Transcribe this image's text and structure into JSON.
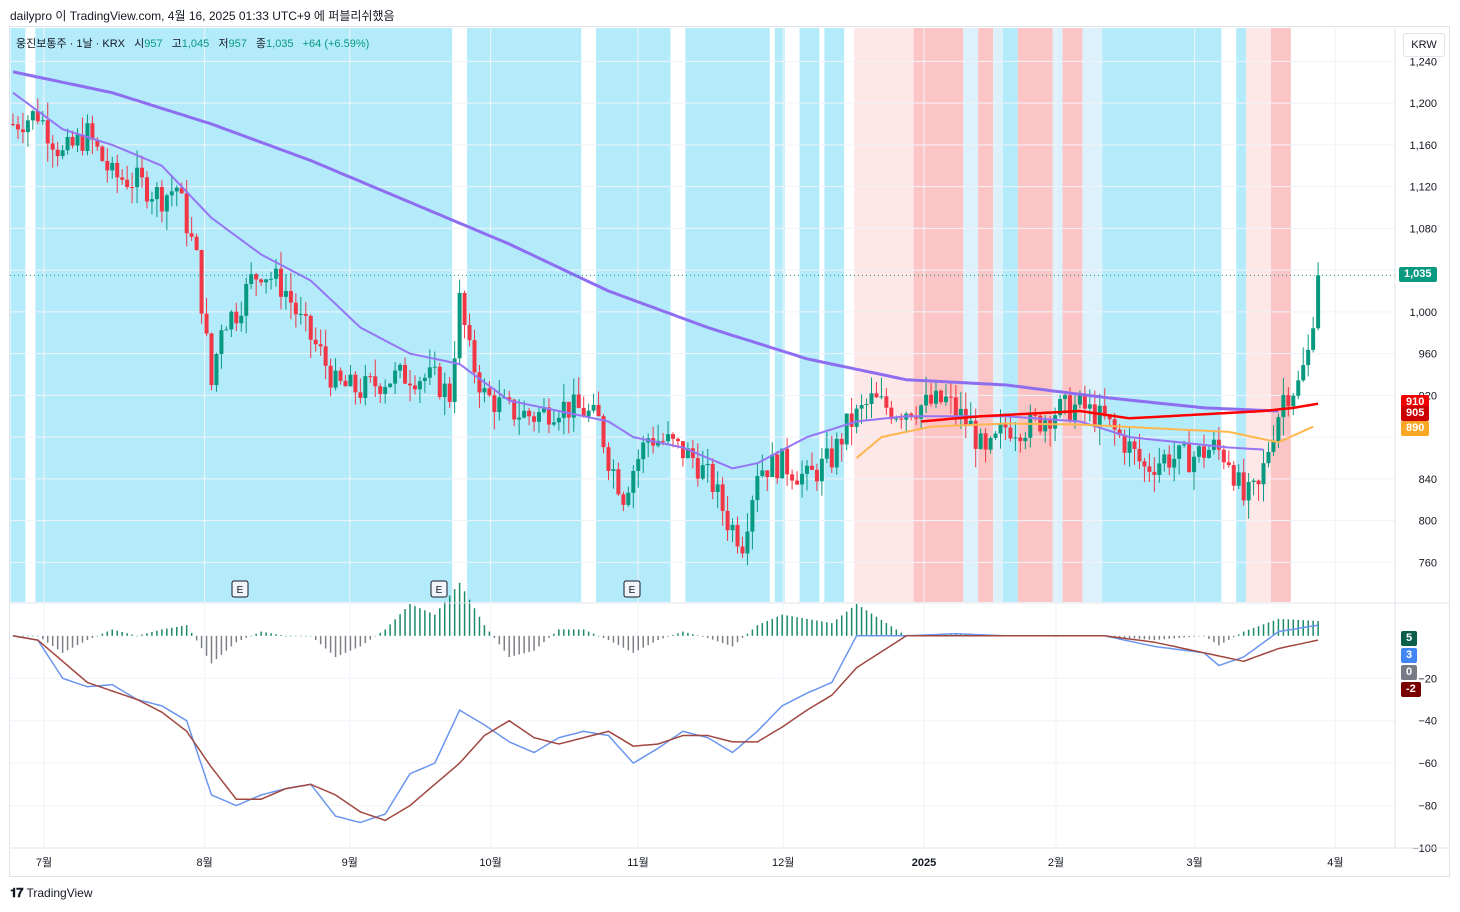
{
  "header": {
    "text": "dailypro 이 TradingView.com, 4월 16, 2025 01:33 UTC+9 에 퍼블리쉬했음"
  },
  "symbol": {
    "title": "웅진보통주 · 1날 · KRX",
    "open_label": "시",
    "open": "957",
    "high_label": "고",
    "high": "1,045",
    "low_label": "저",
    "low": "957",
    "close_label": "종",
    "close": "1,035",
    "change": "+64 (+6.59%)"
  },
  "currency": "KRW",
  "brand": "TradingView",
  "colors": {
    "up": "#089981",
    "down": "#f23645",
    "ma_long": "#8e6ef0",
    "ma_short": "#9575f5",
    "ma_orange": "#ffb74d",
    "ma_red": "#ff0000",
    "bg_blue": "#b3ebfb",
    "bg_blue_light": "#dcf1fb",
    "bg_red": "#fcc5c5",
    "bg_red_light": "#fde7e7",
    "macd_line": "#6b96ef",
    "signal_line": "#a0473f"
  },
  "price_tags": [
    {
      "label": "1,035",
      "value": 1035,
      "color": "#089981"
    },
    {
      "label": "910",
      "value": 910,
      "color": "#f20000"
    },
    {
      "label": "905",
      "value": 905,
      "color": "#cc0000"
    },
    {
      "label": "890",
      "value": 890,
      "color": "#f9a825"
    }
  ],
  "macd_tags": [
    {
      "label": "5",
      "value": 5,
      "color": "#0b5e4a"
    },
    {
      "label": "3",
      "value": 3,
      "color": "#4285f4"
    },
    {
      "label": "0",
      "value": 0,
      "color": "#787b86"
    },
    {
      "label": "-2",
      "value": -2,
      "color": "#7a0000"
    }
  ],
  "chart_data": [
    {
      "type": "candlestick",
      "title": "웅진보통주 · 1날 · KRX",
      "y_ticks": [
        760,
        800,
        840,
        880,
        920,
        960,
        1000,
        1040,
        1080,
        1120,
        1160,
        1200,
        1240
      ],
      "y_tick_labels": [
        "760",
        "800",
        "840",
        "",
        "920",
        "960",
        "1,000",
        "",
        "1,080",
        "1,120",
        "1,160",
        "1,200",
        "1,240"
      ],
      "ylim": [
        722,
        1272
      ],
      "x_ticks": [
        "7월",
        "8월",
        "9월",
        "10월",
        "11월",
        "12월",
        "2025",
        "2월",
        "3월",
        "4월"
      ],
      "last_price": 1035,
      "earnings_markers": [
        "E",
        "E",
        "E"
      ],
      "candle_keypoints": [
        [
          0,
          1180
        ],
        [
          5,
          1190
        ],
        [
          10,
          1150
        ],
        [
          15,
          1170
        ],
        [
          20,
          1130
        ],
        [
          25,
          1125
        ],
        [
          30,
          1110
        ],
        [
          33,
          1120
        ],
        [
          37,
          1050
        ],
        [
          40,
          930
        ],
        [
          42,
          990
        ],
        [
          45,
          1000
        ],
        [
          48,
          1030
        ],
        [
          50,
          1040
        ],
        [
          53,
          1030
        ],
        [
          55,
          1020
        ],
        [
          58,
          990
        ],
        [
          62,
          960
        ],
        [
          65,
          930
        ],
        [
          70,
          925
        ],
        [
          75,
          935
        ],
        [
          80,
          940
        ],
        [
          85,
          935
        ],
        [
          88,
          920
        ],
        [
          90,
          1010
        ],
        [
          92,
          960
        ],
        [
          95,
          920
        ],
        [
          100,
          905
        ],
        [
          105,
          900
        ],
        [
          110,
          910
        ],
        [
          115,
          905
        ],
        [
          118,
          895
        ],
        [
          120,
          860
        ],
        [
          123,
          825
        ],
        [
          125,
          850
        ],
        [
          128,
          880
        ],
        [
          132,
          875
        ],
        [
          137,
          860
        ],
        [
          141,
          835
        ],
        [
          144,
          800
        ],
        [
          147,
          780
        ],
        [
          150,
          850
        ],
        [
          155,
          855
        ],
        [
          160,
          840
        ],
        [
          165,
          860
        ],
        [
          168,
          890
        ],
        [
          173,
          915
        ],
        [
          178,
          905
        ],
        [
          183,
          910
        ],
        [
          188,
          915
        ],
        [
          193,
          890
        ],
        [
          196,
          860
        ],
        [
          200,
          890
        ],
        [
          205,
          890
        ],
        [
          210,
          905
        ],
        [
          215,
          910
        ],
        [
          220,
          895
        ],
        [
          225,
          870
        ],
        [
          228,
          850
        ],
        [
          232,
          860
        ],
        [
          237,
          860
        ],
        [
          242,
          870
        ],
        [
          245,
          860
        ],
        [
          248,
          820
        ],
        [
          251,
          830
        ],
        [
          253,
          870
        ],
        [
          256,
          920
        ],
        [
          259,
          930
        ],
        [
          261,
          960
        ],
        [
          263,
          1035
        ]
      ],
      "series": [
        {
          "name": "",
          "kind": "ma-long",
          "points": [
            [
              0,
              1230
            ],
            [
              20,
              1210
            ],
            [
              40,
              1180
            ],
            [
              60,
              1145
            ],
            [
              80,
              1105
            ],
            [
              100,
              1065
            ],
            [
              120,
              1020
            ],
            [
              140,
              985
            ],
            [
              160,
              955
            ],
            [
              180,
              935
            ],
            [
              200,
              930
            ],
            [
              220,
              918
            ],
            [
              240,
              908
            ],
            [
              255,
              905
            ]
          ]
        },
        {
          "name": "",
          "kind": "ma-short",
          "points": [
            [
              0,
              1210
            ],
            [
              10,
              1175
            ],
            [
              20,
              1160
            ],
            [
              30,
              1140
            ],
            [
              40,
              1090
            ],
            [
              50,
              1055
            ],
            [
              60,
              1030
            ],
            [
              70,
              985
            ],
            [
              80,
              960
            ],
            [
              90,
              950
            ],
            [
              100,
              915
            ],
            [
              110,
              905
            ],
            [
              120,
              895
            ],
            [
              125,
              880
            ],
            [
              135,
              870
            ],
            [
              145,
              850
            ],
            [
              150,
              855
            ],
            [
              160,
              880
            ],
            [
              170,
              895
            ],
            [
              180,
              900
            ],
            [
              200,
              900
            ],
            [
              215,
              895
            ],
            [
              225,
              880
            ],
            [
              235,
              875
            ],
            [
              245,
              870
            ],
            [
              252,
              868
            ]
          ]
        },
        {
          "name": "",
          "kind": "ma-orange",
          "points": [
            [
              170,
              860
            ],
            [
              175,
              880
            ],
            [
              185,
              890
            ],
            [
              200,
              893
            ],
            [
              215,
              892
            ],
            [
              245,
              885
            ],
            [
              255,
              875
            ],
            [
              262,
              890
            ]
          ]
        },
        {
          "name": "",
          "kind": "ma-red",
          "points": [
            [
              183,
              895
            ],
            [
              195,
              900
            ],
            [
              215,
              905
            ],
            [
              225,
              898
            ],
            [
              252,
              905
            ],
            [
              258,
              908
            ],
            [
              263,
              912
            ]
          ]
        }
      ],
      "background_bands": [
        {
          "from": 0,
          "to": 3,
          "color": "blue"
        },
        {
          "from": 5,
          "to": 89,
          "color": "blue"
        },
        {
          "from": 92,
          "to": 115,
          "color": "blue"
        },
        {
          "from": 118,
          "to": 133,
          "color": "blue"
        },
        {
          "from": 136,
          "to": 153,
          "color": "blue"
        },
        {
          "from": 154,
          "to": 156,
          "color": "blue"
        },
        {
          "from": 159,
          "to": 163,
          "color": "blue"
        },
        {
          "from": 164,
          "to": 168,
          "color": "blue"
        },
        {
          "from": 170,
          "to": 182,
          "color": "red-light"
        },
        {
          "from": 182,
          "to": 192,
          "color": "red"
        },
        {
          "from": 192,
          "to": 195,
          "color": "blue-light"
        },
        {
          "from": 195,
          "to": 198,
          "color": "red"
        },
        {
          "from": 198,
          "to": 200,
          "color": "blue-light"
        },
        {
          "from": 200,
          "to": 203,
          "color": "blue"
        },
        {
          "from": 203,
          "to": 210,
          "color": "red"
        },
        {
          "from": 210,
          "to": 212,
          "color": "blue-light"
        },
        {
          "from": 212,
          "to": 216,
          "color": "red"
        },
        {
          "from": 216,
          "to": 220,
          "color": "blue-light"
        },
        {
          "from": 220,
          "to": 244,
          "color": "blue"
        },
        {
          "from": 247,
          "to": 249,
          "color": "blue"
        },
        {
          "from": 249,
          "to": 254,
          "color": "red-light"
        },
        {
          "from": 254,
          "to": 258,
          "color": "red"
        }
      ]
    },
    {
      "type": "macd",
      "y_ticks": [
        -100,
        -80,
        -60,
        -40,
        -20
      ],
      "y_tick_labels": [
        "−100",
        "−80",
        "−60",
        "−40",
        "−20"
      ],
      "ylim": [
        -100,
        15
      ],
      "series": [
        {
          "name": "",
          "kind": "macd",
          "points": [
            [
              0,
              0
            ],
            [
              5,
              -2
            ],
            [
              10,
              -20
            ],
            [
              15,
              -24
            ],
            [
              20,
              -23
            ],
            [
              25,
              -30
            ],
            [
              30,
              -33
            ],
            [
              35,
              -40
            ],
            [
              40,
              -75
            ],
            [
              45,
              -80
            ],
            [
              50,
              -75
            ],
            [
              55,
              -72
            ],
            [
              60,
              -70
            ],
            [
              65,
              -85
            ],
            [
              70,
              -88
            ],
            [
              75,
              -84
            ],
            [
              80,
              -65
            ],
            [
              85,
              -60
            ],
            [
              90,
              -35
            ],
            [
              95,
              -42
            ],
            [
              100,
              -50
            ],
            [
              105,
              -55
            ],
            [
              110,
              -48
            ],
            [
              115,
              -45
            ],
            [
              120,
              -47
            ],
            [
              125,
              -60
            ],
            [
              130,
              -53
            ],
            [
              135,
              -45
            ],
            [
              140,
              -48
            ],
            [
              145,
              -55
            ],
            [
              150,
              -45
            ],
            [
              155,
              -33
            ],
            [
              160,
              -27
            ],
            [
              165,
              -22
            ],
            [
              170,
              0
            ],
            [
              180,
              0
            ],
            [
              190,
              1
            ],
            [
              200,
              0
            ],
            [
              220,
              0
            ],
            [
              230,
              -5
            ],
            [
              240,
              -8
            ],
            [
              243,
              -14
            ],
            [
              248,
              -10
            ],
            [
              255,
              2
            ],
            [
              263,
              5
            ]
          ]
        },
        {
          "name": "",
          "kind": "signal",
          "points": [
            [
              0,
              0
            ],
            [
              5,
              -2
            ],
            [
              10,
              -12
            ],
            [
              15,
              -22
            ],
            [
              20,
              -26
            ],
            [
              25,
              -30
            ],
            [
              30,
              -36
            ],
            [
              35,
              -45
            ],
            [
              40,
              -62
            ],
            [
              45,
              -77
            ],
            [
              50,
              -77
            ],
            [
              55,
              -72
            ],
            [
              60,
              -70
            ],
            [
              65,
              -75
            ],
            [
              70,
              -83
            ],
            [
              75,
              -87
            ],
            [
              80,
              -80
            ],
            [
              85,
              -70
            ],
            [
              90,
              -60
            ],
            [
              95,
              -47
            ],
            [
              100,
              -40
            ],
            [
              105,
              -48
            ],
            [
              110,
              -51
            ],
            [
              115,
              -48
            ],
            [
              120,
              -45
            ],
            [
              125,
              -52
            ],
            [
              130,
              -51
            ],
            [
              135,
              -47
            ],
            [
              140,
              -47
            ],
            [
              145,
              -50
            ],
            [
              150,
              -50
            ],
            [
              155,
              -43
            ],
            [
              160,
              -35
            ],
            [
              165,
              -28
            ],
            [
              170,
              -15
            ],
            [
              180,
              0
            ],
            [
              190,
              0
            ],
            [
              200,
              0
            ],
            [
              220,
              0
            ],
            [
              230,
              -3
            ],
            [
              240,
              -8
            ],
            [
              248,
              -12
            ],
            [
              255,
              -6
            ],
            [
              263,
              -2
            ]
          ]
        }
      ]
    }
  ]
}
